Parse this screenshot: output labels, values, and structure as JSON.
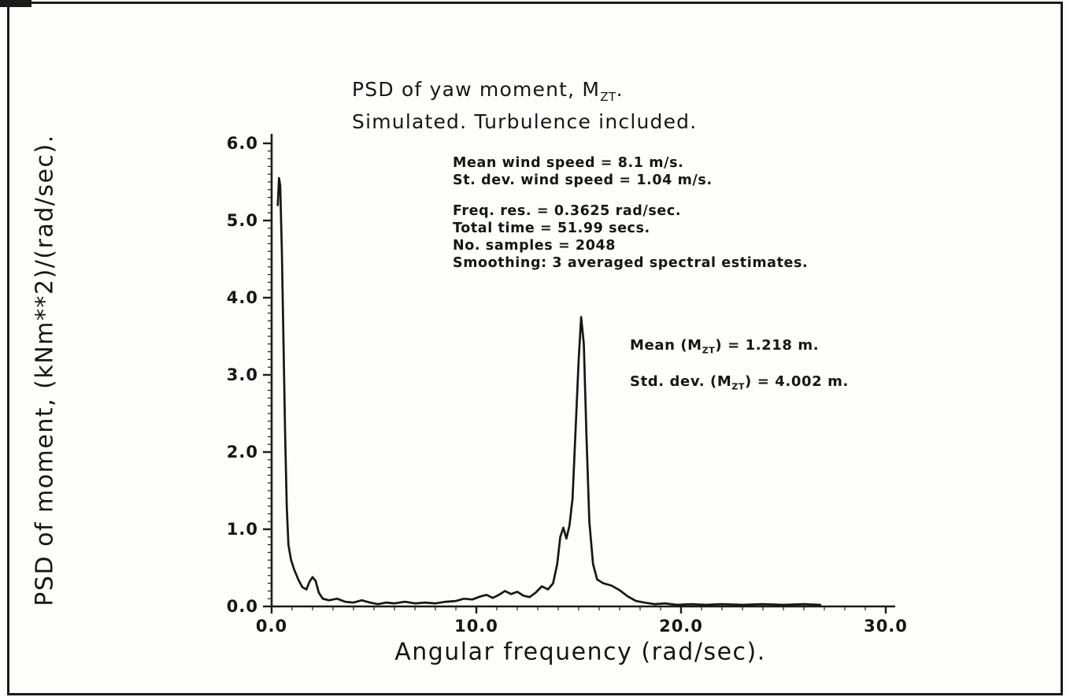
{
  "page": {
    "background": "#fdfdfc",
    "ink": "#1b1b1b"
  },
  "chart_data": {
    "type": "line",
    "title": {
      "line1_pre": "PSD of yaw moment, M",
      "line1_sub": "ZT",
      "line1_post": ".",
      "line2": "Simulated. Turbulence included."
    },
    "xlabel": "Angular frequency (rad/sec).",
    "ylabel": "PSD of moment, (kNm**2)/(rad/sec).",
    "xlim": [
      0,
      30
    ],
    "ylim": [
      0,
      6
    ],
    "xtick_values": [
      0,
      10,
      20,
      30
    ],
    "xtick_labels": [
      "0.0",
      "10.0",
      "20.0",
      "30.0"
    ],
    "ytick_values": [
      0,
      1,
      2,
      3,
      4,
      5,
      6
    ],
    "ytick_labels": [
      "0.0",
      "1.0",
      "2.0",
      "3.0",
      "4.0",
      "5.0",
      "6.0"
    ],
    "minor_x_step": 1,
    "minor_y_step": 0.1,
    "grid": false,
    "legend": false,
    "annotations": {
      "stats_a": [
        "Mean wind speed = 8.1 m/s.",
        "St. dev. wind speed = 1.04 m/s."
      ],
      "stats_b": [
        "Freq. res. = 0.3625 rad/sec.",
        "Total time = 51.99 secs.",
        "No. samples = 2048",
        "Smoothing: 3 averaged spectral estimates."
      ],
      "mean": {
        "pre": "Mean (M",
        "sub": "ZT",
        "post": ") = 1.218 m."
      },
      "std": {
        "pre": "Std. dev. (M",
        "sub": "ZT",
        "post": ") = 4.002 m."
      }
    },
    "series": [
      {
        "name": "PSD of yaw moment (simulated, turbulence included)",
        "points": [
          [
            0.3,
            5.2
          ],
          [
            0.36,
            5.55
          ],
          [
            0.42,
            5.45
          ],
          [
            0.5,
            4.6
          ],
          [
            0.58,
            3.4
          ],
          [
            0.66,
            2.2
          ],
          [
            0.74,
            1.3
          ],
          [
            0.82,
            0.8
          ],
          [
            0.95,
            0.6
          ],
          [
            1.1,
            0.48
          ],
          [
            1.3,
            0.35
          ],
          [
            1.5,
            0.25
          ],
          [
            1.7,
            0.22
          ],
          [
            1.85,
            0.32
          ],
          [
            2.0,
            0.38
          ],
          [
            2.15,
            0.33
          ],
          [
            2.3,
            0.18
          ],
          [
            2.5,
            0.1
          ],
          [
            2.8,
            0.08
          ],
          [
            3.2,
            0.1
          ],
          [
            3.6,
            0.06
          ],
          [
            4.0,
            0.05
          ],
          [
            4.4,
            0.08
          ],
          [
            4.8,
            0.05
          ],
          [
            5.2,
            0.03
          ],
          [
            5.6,
            0.05
          ],
          [
            6.0,
            0.04
          ],
          [
            6.5,
            0.06
          ],
          [
            7.0,
            0.04
          ],
          [
            7.5,
            0.05
          ],
          [
            8.0,
            0.04
          ],
          [
            8.5,
            0.06
          ],
          [
            9.0,
            0.07
          ],
          [
            9.4,
            0.1
          ],
          [
            9.8,
            0.09
          ],
          [
            10.2,
            0.13
          ],
          [
            10.5,
            0.15
          ],
          [
            10.8,
            0.11
          ],
          [
            11.1,
            0.15
          ],
          [
            11.4,
            0.2
          ],
          [
            11.7,
            0.16
          ],
          [
            12.0,
            0.19
          ],
          [
            12.3,
            0.14
          ],
          [
            12.6,
            0.12
          ],
          [
            12.9,
            0.18
          ],
          [
            13.2,
            0.26
          ],
          [
            13.5,
            0.22
          ],
          [
            13.75,
            0.3
          ],
          [
            13.95,
            0.55
          ],
          [
            14.1,
            0.9
          ],
          [
            14.25,
            1.02
          ],
          [
            14.4,
            0.88
          ],
          [
            14.55,
            1.05
          ],
          [
            14.7,
            1.4
          ],
          [
            14.85,
            2.3
          ],
          [
            15.0,
            3.2
          ],
          [
            15.12,
            3.75
          ],
          [
            15.25,
            3.4
          ],
          [
            15.38,
            2.2
          ],
          [
            15.52,
            1.1
          ],
          [
            15.7,
            0.55
          ],
          [
            15.9,
            0.35
          ],
          [
            16.2,
            0.3
          ],
          [
            16.6,
            0.27
          ],
          [
            17.0,
            0.21
          ],
          [
            17.4,
            0.13
          ],
          [
            17.8,
            0.07
          ],
          [
            18.2,
            0.05
          ],
          [
            18.7,
            0.03
          ],
          [
            19.2,
            0.04
          ],
          [
            19.8,
            0.02
          ],
          [
            20.5,
            0.03
          ],
          [
            21.2,
            0.02
          ],
          [
            22.0,
            0.03
          ],
          [
            23.0,
            0.02
          ],
          [
            24.0,
            0.03
          ],
          [
            25.0,
            0.02
          ],
          [
            26.0,
            0.03
          ],
          [
            26.8,
            0.02
          ]
        ]
      }
    ]
  }
}
